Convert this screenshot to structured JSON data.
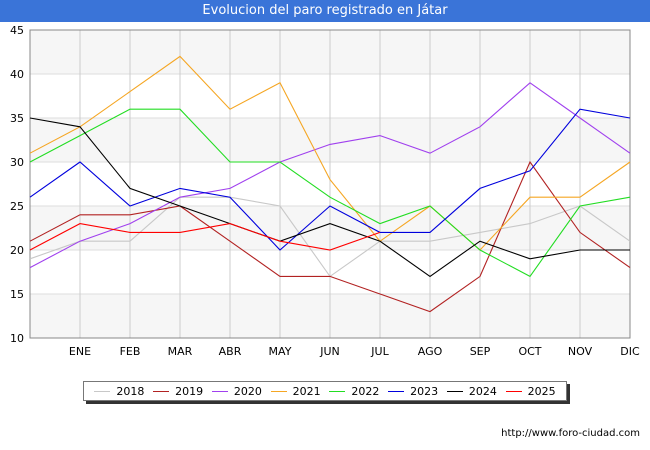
{
  "chart_data": {
    "type": "line",
    "title": "Evolucion del paro registrado en Játar",
    "categories": [
      "",
      "ENE",
      "FEB",
      "MAR",
      "ABR",
      "MAY",
      "JUN",
      "JUL",
      "AGO",
      "SEP",
      "OCT",
      "NOV",
      "DIC"
    ],
    "yticks": [
      "10",
      "15",
      "20",
      "25",
      "30",
      "35",
      "40",
      "45"
    ],
    "ylim": [
      10,
      45
    ],
    "grid": true,
    "legend_position": "bottom",
    "series": [
      {
        "name": "2018",
        "color": "#c8c8c8",
        "values": [
          19,
          21,
          21,
          26,
          26,
          25,
          17,
          21,
          21,
          22,
          23,
          25,
          21
        ]
      },
      {
        "name": "2019",
        "color": "#b22222",
        "values": [
          21,
          24,
          24,
          25,
          21,
          17,
          17,
          15,
          13,
          17,
          30,
          22,
          18
        ]
      },
      {
        "name": "2020",
        "color": "#a040ee",
        "values": [
          18,
          21,
          23,
          26,
          27,
          30,
          32,
          33,
          31,
          34,
          39,
          35,
          31
        ]
      },
      {
        "name": "2021",
        "color": "#f5a623",
        "values": [
          31,
          34,
          38,
          42,
          36,
          39,
          28,
          21,
          25,
          20,
          26,
          26,
          30
        ]
      },
      {
        "name": "2022",
        "color": "#22dd22",
        "values": [
          30,
          33,
          36,
          36,
          30,
          30,
          26,
          23,
          25,
          20,
          17,
          25,
          26
        ]
      },
      {
        "name": "2023",
        "color": "#0000dd",
        "values": [
          26,
          30,
          25,
          27,
          26,
          20,
          25,
          22,
          22,
          27,
          29,
          36,
          35
        ]
      },
      {
        "name": "2024",
        "color": "#000000",
        "values": [
          35,
          34,
          27,
          25,
          23,
          21,
          23,
          21,
          17,
          21,
          19,
          20,
          20
        ]
      },
      {
        "name": "2025",
        "color": "#ff0000",
        "values": [
          20,
          23,
          22,
          22,
          23,
          21,
          20,
          22,
          null,
          null,
          null,
          null,
          null
        ]
      }
    ]
  },
  "footer": {
    "url": "http://www.foro-ciudad.com"
  }
}
